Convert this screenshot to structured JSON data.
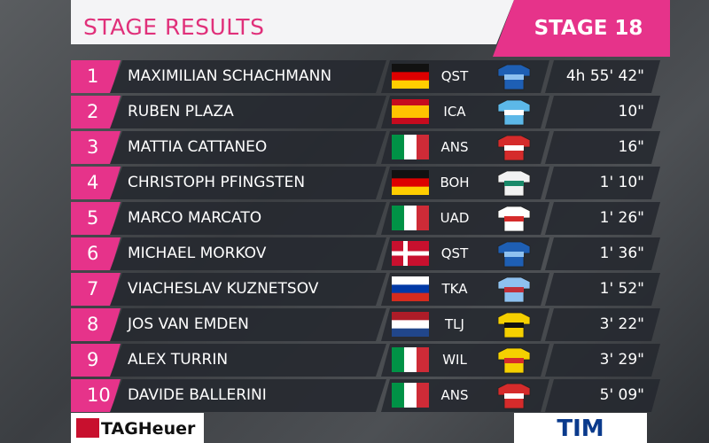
{
  "header": {
    "title": "STAGE RESULTS",
    "stage": "STAGE 18"
  },
  "rows": [
    {
      "rank": 1,
      "name": "MAXIMILIAN SCHACHMANN",
      "team": "QST",
      "time": "4h 55' 42\""
    },
    {
      "rank": 2,
      "name": "RUBEN PLAZA",
      "team": "ICA",
      "time": "10\""
    },
    {
      "rank": 3,
      "name": "MATTIA CATTANEO",
      "team": "ANS",
      "time": "16\""
    },
    {
      "rank": 4,
      "name": "CHRISTOPH PFINGSTEN",
      "team": "BOH",
      "time": "1' 10\""
    },
    {
      "rank": 5,
      "name": "MARCO MARCATO",
      "team": "UAD",
      "time": "1' 26\""
    },
    {
      "rank": 6,
      "name": "MICHAEL MORKOV",
      "team": "QST",
      "time": "1' 36\""
    },
    {
      "rank": 7,
      "name": "VIACHESLAV KUZNETSOV",
      "team": "TKA",
      "time": "1' 52\""
    },
    {
      "rank": 8,
      "name": "JOS VAN EMDEN",
      "team": "TLJ",
      "time": "3' 22\""
    },
    {
      "rank": 9,
      "name": "ALEX TURRIN",
      "team": "WIL",
      "time": "3' 29\""
    },
    {
      "rank": 10,
      "name": "DAVIDE BALLERINI",
      "team": "ANS",
      "time": "5' 09\""
    }
  ],
  "footer": {
    "sponsor_left": "TAGHeuer",
    "sponsor_right": "TIM"
  }
}
